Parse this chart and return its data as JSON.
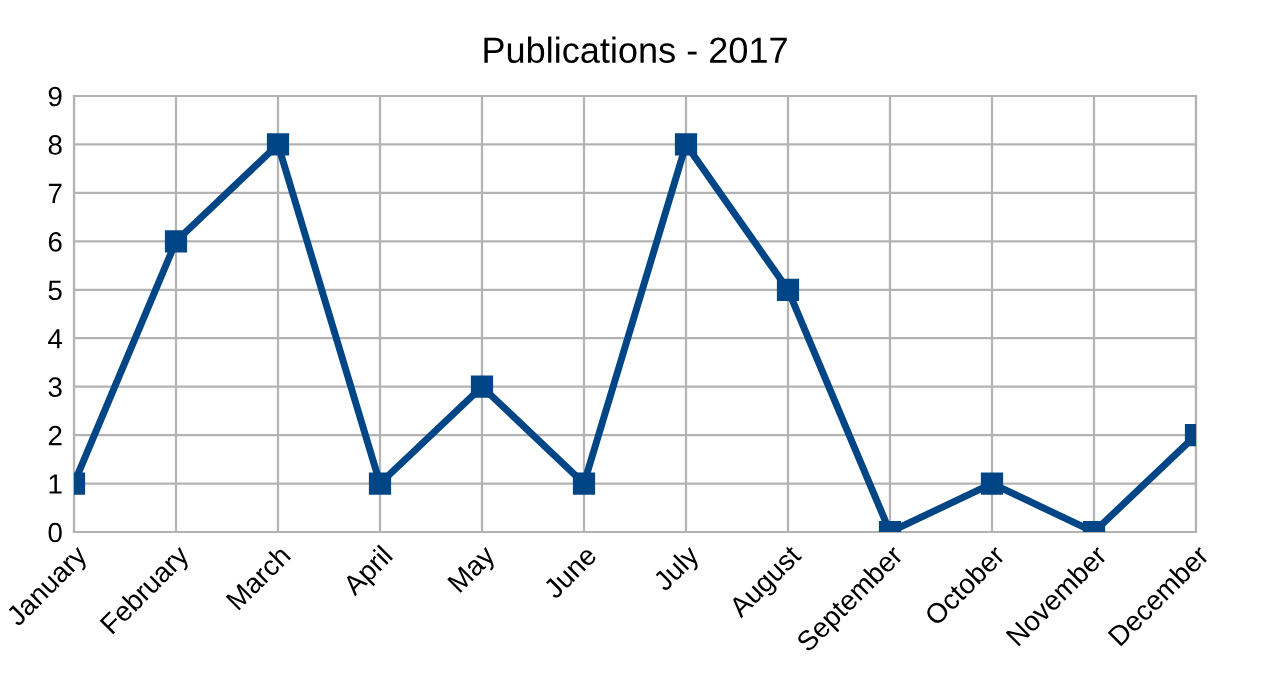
{
  "chart_data": {
    "type": "line",
    "title": "Publications - 2017",
    "categories": [
      "January",
      "February",
      "March",
      "April",
      "May",
      "June",
      "July",
      "August",
      "September",
      "October",
      "November",
      "December"
    ],
    "series": [
      {
        "color": "#004586",
        "values": [
          1,
          6,
          8,
          1,
          3,
          1,
          8,
          5,
          0,
          1,
          0,
          2
        ]
      }
    ],
    "ylim": [
      0,
      9
    ],
    "yticks": [
      0,
      1,
      2,
      3,
      4,
      5,
      6,
      7,
      8,
      9
    ],
    "grid": true,
    "legend": false,
    "marker": "square",
    "line_style": "solid"
  }
}
